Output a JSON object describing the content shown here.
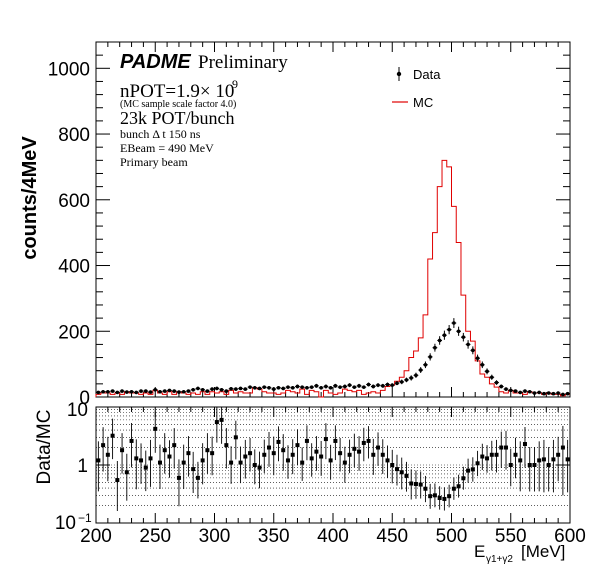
{
  "chart_data": [
    {
      "type": "histogram",
      "ylabel": "counts/4MeV",
      "xlim": [
        200,
        600
      ],
      "ylim": [
        0,
        1080
      ],
      "yticks": [
        "0",
        "200",
        "400",
        "600",
        "800",
        "1000"
      ],
      "bin_width": 4,
      "legend": {
        "position": "top-right",
        "entries": [
          "Data",
          "MC"
        ]
      },
      "annotations": {
        "brand": "PADME",
        "status": "Preliminary",
        "npot": "nPOT=1.9× 10",
        "npot_exp": "9",
        "scale_note": "(MC sample scale factor 4.0)",
        "pot_bunch": "23k POT/bunch",
        "bunch_dt": "bunch Δ t 150 ns",
        "ebeam": "EBeam = 490 MeV",
        "beam": "Primary beam"
      },
      "series": [
        {
          "name": "Data",
          "x": [
            202,
            206,
            210,
            214,
            218,
            222,
            226,
            230,
            234,
            238,
            242,
            246,
            250,
            254,
            258,
            262,
            266,
            270,
            274,
            278,
            282,
            286,
            290,
            294,
            298,
            302,
            306,
            310,
            314,
            318,
            322,
            326,
            330,
            334,
            338,
            342,
            346,
            350,
            354,
            358,
            362,
            366,
            370,
            374,
            378,
            382,
            386,
            390,
            394,
            398,
            402,
            406,
            410,
            414,
            418,
            422,
            426,
            430,
            434,
            438,
            442,
            446,
            450,
            454,
            458,
            462,
            466,
            470,
            474,
            478,
            482,
            486,
            490,
            494,
            498,
            502,
            506,
            510,
            514,
            518,
            522,
            526,
            530,
            534,
            538,
            542,
            546,
            550,
            554,
            558,
            562,
            566,
            570,
            574,
            578,
            582,
            586,
            590,
            594,
            598
          ],
          "values": [
            14,
            16,
            16,
            18,
            14,
            18,
            15,
            16,
            14,
            18,
            18,
            15,
            22,
            16,
            18,
            20,
            18,
            15,
            16,
            18,
            22,
            26,
            22,
            18,
            24,
            26,
            22,
            18,
            25,
            24,
            26,
            24,
            30,
            28,
            26,
            30,
            28,
            24,
            28,
            26,
            30,
            28,
            32,
            30,
            28,
            30,
            34,
            28,
            32,
            28,
            34,
            30,
            32,
            36,
            30,
            34,
            30,
            38,
            32,
            36,
            34,
            38,
            36,
            42,
            46,
            52,
            58,
            66,
            82,
            98,
            122,
            150,
            172,
            188,
            205,
            225,
            200,
            182,
            160,
            142,
            118,
            98,
            78,
            60,
            44,
            32,
            24,
            20,
            18,
            14,
            18,
            16,
            12,
            14,
            10,
            12,
            10,
            12,
            8,
            10
          ],
          "errors": [
            4,
            4,
            4,
            4,
            4,
            4,
            4,
            4,
            4,
            4,
            4,
            4,
            5,
            4,
            4,
            4,
            4,
            4,
            4,
            4,
            5,
            5,
            5,
            4,
            5,
            5,
            5,
            4,
            5,
            5,
            5,
            5,
            5,
            5,
            5,
            5,
            5,
            5,
            5,
            5,
            5,
            5,
            6,
            5,
            5,
            5,
            6,
            5,
            6,
            5,
            6,
            5,
            6,
            6,
            5,
            6,
            5,
            6,
            6,
            6,
            6,
            6,
            6,
            6,
            7,
            7,
            8,
            8,
            9,
            10,
            11,
            12,
            13,
            14,
            14,
            15,
            14,
            13,
            13,
            12,
            11,
            10,
            9,
            8,
            7,
            6,
            5,
            4,
            4,
            4,
            4,
            4,
            3,
            4,
            3,
            3,
            3,
            3,
            3,
            3
          ]
        },
        {
          "name": "MC",
          "x": [
            202,
            206,
            210,
            214,
            218,
            222,
            226,
            230,
            234,
            238,
            242,
            246,
            250,
            254,
            258,
            262,
            266,
            270,
            274,
            278,
            282,
            286,
            290,
            294,
            298,
            302,
            306,
            310,
            314,
            318,
            322,
            326,
            330,
            334,
            338,
            342,
            346,
            350,
            354,
            358,
            362,
            366,
            370,
            374,
            378,
            382,
            386,
            390,
            394,
            398,
            402,
            406,
            410,
            414,
            418,
            422,
            426,
            430,
            434,
            438,
            442,
            446,
            450,
            454,
            458,
            462,
            466,
            470,
            474,
            478,
            482,
            486,
            490,
            494,
            498,
            502,
            506,
            510,
            514,
            518,
            522,
            526,
            530,
            534,
            538,
            542,
            546,
            550,
            554,
            558,
            562,
            566,
            570,
            574,
            578,
            582,
            586,
            590,
            594,
            598
          ],
          "values": [
            8,
            12,
            12,
            8,
            12,
            8,
            16,
            12,
            12,
            8,
            12,
            8,
            20,
            12,
            8,
            16,
            8,
            16,
            12,
            8,
            12,
            8,
            16,
            8,
            16,
            12,
            16,
            8,
            20,
            12,
            16,
            12,
            12,
            28,
            24,
            16,
            12,
            12,
            8,
            12,
            20,
            16,
            12,
            24,
            8,
            20,
            16,
            0,
            20,
            12,
            8,
            12,
            24,
            20,
            16,
            20,
            8,
            12,
            16,
            12,
            20,
            32,
            36,
            48,
            60,
            80,
            120,
            140,
            180,
            250,
            420,
            500,
            640,
            720,
            700,
            580,
            470,
            310,
            200,
            170,
            110,
            70,
            60,
            40,
            30,
            16,
            12,
            20,
            12,
            12,
            8,
            16,
            12,
            12,
            8,
            12,
            8,
            8,
            4,
            8
          ]
        }
      ]
    },
    {
      "type": "scatter",
      "ylabel": "Data/MC",
      "xlabel": "E",
      "xlabel_sub": "γ1+γ2",
      "xlabel_unit": "[MeV]",
      "yscale": "log",
      "ylim": [
        0.1,
        10
      ],
      "yticks": [
        "10",
        "1",
        "10"
      ],
      "ytick_exp": "−1",
      "xticks": [
        "200",
        "250",
        "300",
        "350",
        "400",
        "450",
        "500",
        "550",
        "600"
      ],
      "series": [
        {
          "name": "Data/MC",
          "x": [
            202,
            206,
            210,
            214,
            218,
            222,
            226,
            230,
            234,
            238,
            242,
            246,
            250,
            254,
            258,
            262,
            266,
            270,
            274,
            278,
            282,
            286,
            290,
            294,
            298,
            302,
            306,
            310,
            314,
            318,
            322,
            326,
            330,
            334,
            338,
            342,
            346,
            350,
            354,
            358,
            362,
            366,
            370,
            374,
            378,
            382,
            386,
            390,
            394,
            398,
            402,
            406,
            410,
            414,
            418,
            422,
            426,
            430,
            434,
            438,
            442,
            446,
            450,
            454,
            458,
            462,
            466,
            470,
            474,
            478,
            482,
            486,
            490,
            494,
            498,
            502,
            506,
            510,
            514,
            518,
            522,
            526,
            530,
            534,
            538,
            542,
            546,
            550,
            554,
            558,
            562,
            566,
            570,
            574,
            578,
            582,
            586,
            590,
            594,
            598
          ],
          "values": [
            1.2,
            2.2,
            1.5,
            3.2,
            0.55,
            1.8,
            0.75,
            2.6,
            1.3,
            1.2,
            0.9,
            1.3,
            4.2,
            1.1,
            1.8,
            1.4,
            2.2,
            0.6,
            1.1,
            1.6,
            0.85,
            0.6,
            1.2,
            1.8,
            1.6,
            5.5,
            6.0,
            2.2,
            1.1,
            3.0,
            1.1,
            1.4,
            1.6,
            1.0,
            0.9,
            1.5,
            2.0,
            1.6,
            2.5,
            1.8,
            1.2,
            1.5,
            2.2,
            1.1,
            2.6,
            1.3,
            1.7,
            1.4,
            2.8,
            1.2,
            2.6,
            1.6,
            1.1,
            1.5,
            1.9,
            1.7,
            2.4,
            2.6,
            1.5,
            2.0,
            1.5,
            1.2,
            1.0,
            0.85,
            0.75,
            0.65,
            0.48,
            0.47,
            0.46,
            0.39,
            0.29,
            0.3,
            0.27,
            0.26,
            0.29,
            0.39,
            0.43,
            0.59,
            0.8,
            0.84,
            1.07,
            1.4,
            1.3,
            1.5,
            1.5,
            2.0,
            2.0,
            1.0,
            1.5,
            1.2,
            2.3,
            1.0,
            1.0,
            1.2,
            1.25,
            1.0,
            1.25,
            1.5,
            2.0,
            1.25
          ]
        }
      ]
    }
  ]
}
